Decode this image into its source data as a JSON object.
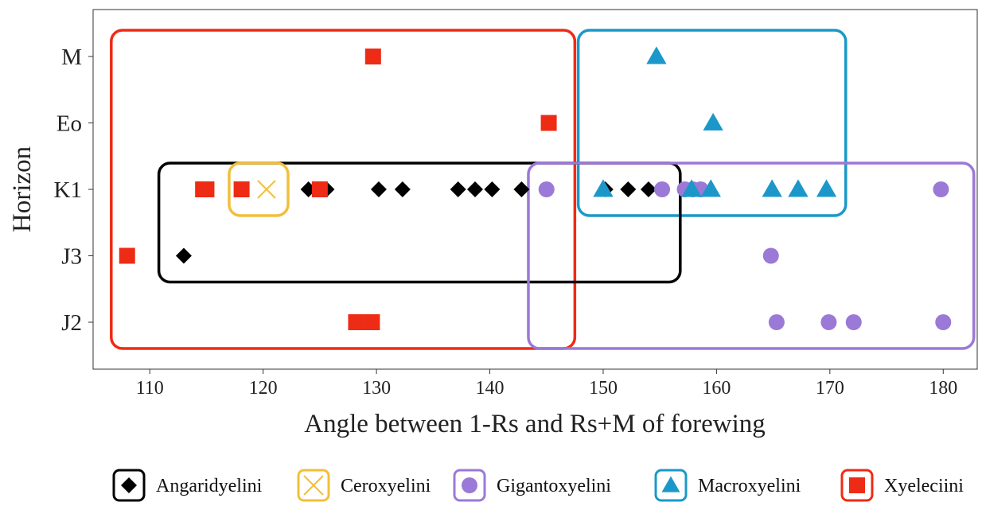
{
  "chart_data": {
    "type": "scatter",
    "title": "",
    "xlabel": "Angle between 1-Rs and Rs+M of forewing",
    "ylabel": "Horizon",
    "xlim": [
      105,
      183
    ],
    "x_ticks": [
      110,
      120,
      130,
      140,
      150,
      160,
      170,
      180
    ],
    "y_categories": [
      "M",
      "Eo",
      "K1",
      "J3",
      "J2"
    ],
    "grid": false,
    "legend_position": "bottom",
    "series": [
      {
        "name": "Angaridyelini",
        "marker": "diamond",
        "color": "#000000",
        "points": [
          {
            "x": 113,
            "y": "J3"
          },
          {
            "x": 124,
            "y": "K1"
          },
          {
            "x": 124.8,
            "y": "K1"
          },
          {
            "x": 125.6,
            "y": "K1"
          },
          {
            "x": 130.2,
            "y": "K1"
          },
          {
            "x": 132.3,
            "y": "K1"
          },
          {
            "x": 137.2,
            "y": "K1"
          },
          {
            "x": 138.7,
            "y": "K1"
          },
          {
            "x": 140.2,
            "y": "K1"
          },
          {
            "x": 142.8,
            "y": "K1"
          },
          {
            "x": 150.2,
            "y": "K1"
          },
          {
            "x": 152.2,
            "y": "K1"
          },
          {
            "x": 154,
            "y": "K1"
          }
        ]
      },
      {
        "name": "Ceroxyelini",
        "marker": "x",
        "color": "#f2bf3a",
        "points": [
          {
            "x": 120.3,
            "y": "K1"
          }
        ]
      },
      {
        "name": "Gigantoxyelini",
        "marker": "circle",
        "color": "#9b79d6",
        "points": [
          {
            "x": 145,
            "y": "K1"
          },
          {
            "x": 155.2,
            "y": "K1"
          },
          {
            "x": 157.2,
            "y": "K1"
          },
          {
            "x": 157.9,
            "y": "K1"
          },
          {
            "x": 158.6,
            "y": "K1"
          },
          {
            "x": 179.8,
            "y": "K1"
          },
          {
            "x": 164.8,
            "y": "J3"
          },
          {
            "x": 165.3,
            "y": "J2"
          },
          {
            "x": 169.9,
            "y": "J2"
          },
          {
            "x": 172.1,
            "y": "J2"
          },
          {
            "x": 180,
            "y": "J2"
          }
        ]
      },
      {
        "name": "Macroxyelini",
        "marker": "triangle",
        "color": "#1b98c9",
        "points": [
          {
            "x": 154.7,
            "y": "M"
          },
          {
            "x": 159.7,
            "y": "Eo"
          },
          {
            "x": 150,
            "y": "K1"
          },
          {
            "x": 157.8,
            "y": "K1"
          },
          {
            "x": 159.5,
            "y": "K1"
          },
          {
            "x": 164.9,
            "y": "K1"
          },
          {
            "x": 167.2,
            "y": "K1"
          },
          {
            "x": 169.7,
            "y": "K1"
          }
        ]
      },
      {
        "name": "Xyeleciini",
        "marker": "square",
        "color": "#ee2b15",
        "points": [
          {
            "x": 129.7,
            "y": "M"
          },
          {
            "x": 145.2,
            "y": "Eo"
          },
          {
            "x": 114.7,
            "y": "K1"
          },
          {
            "x": 115,
            "y": "K1"
          },
          {
            "x": 118.1,
            "y": "K1"
          },
          {
            "x": 125,
            "y": "K1"
          },
          {
            "x": 108,
            "y": "J3"
          },
          {
            "x": 128.2,
            "y": "J2"
          },
          {
            "x": 129.6,
            "y": "J2"
          }
        ]
      }
    ],
    "group_boxes": [
      {
        "series": "Xyeleciini",
        "x_range": [
          106.6,
          147.5
        ],
        "y_range": [
          "M",
          "J2"
        ]
      },
      {
        "series": "Macroxyelini",
        "x_range": [
          147.8,
          171.4
        ],
        "y_range": [
          "M",
          "K1"
        ]
      },
      {
        "series": "Angaridyelini",
        "x_range": [
          110.8,
          156.8
        ],
        "y_range": [
          "K1",
          "J3"
        ]
      },
      {
        "series": "Ceroxyelini",
        "x_range": [
          117,
          122.2
        ],
        "y_range": [
          "K1",
          "K1"
        ]
      },
      {
        "series": "Gigantoxyelini",
        "x_range": [
          143.4,
          182.7
        ],
        "y_range": [
          "K1",
          "J2"
        ]
      }
    ]
  }
}
